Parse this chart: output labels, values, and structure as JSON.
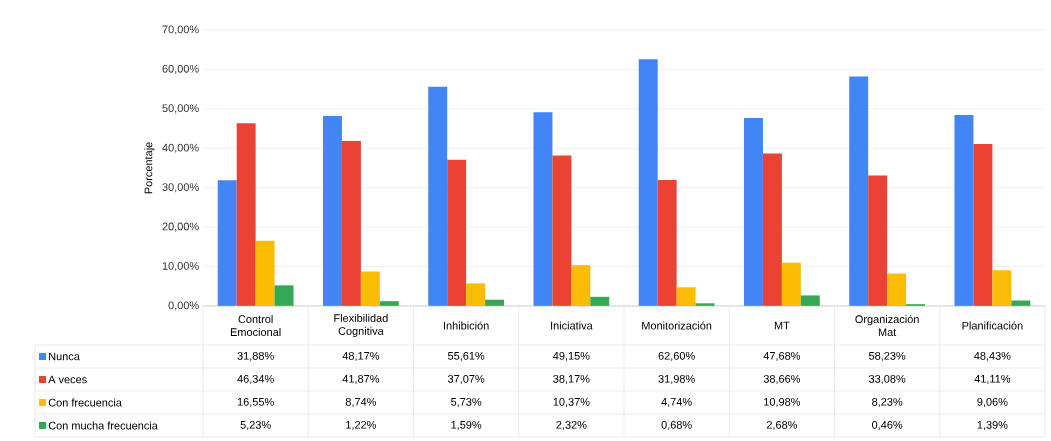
{
  "chart_data": {
    "type": "bar",
    "ylabel": "Porcentaje",
    "categories": [
      "Control Emocional",
      "Flexibilidad Cognitiva",
      "Inhibición",
      "Iniciativa",
      "Monitorización",
      "MT",
      "Organización Mat",
      "Planificación"
    ],
    "series": [
      {
        "name": "Nunca",
        "color": "#4285f4",
        "values": [
          31.88,
          48.17,
          55.61,
          49.15,
          62.6,
          47.68,
          58.23,
          48.43
        ],
        "value_labels": [
          "31,88%",
          "48,17%",
          "55,61%",
          "49,15%",
          "62,60%",
          "47,68%",
          "58,23%",
          "48,43%"
        ]
      },
      {
        "name": "A veces",
        "color": "#ea4335",
        "values": [
          46.34,
          41.87,
          37.07,
          38.17,
          31.98,
          38.66,
          33.08,
          41.11
        ],
        "value_labels": [
          "46,34%",
          "41,87%",
          "37,07%",
          "38,17%",
          "31,98%",
          "38,66%",
          "33,08%",
          "41,11%"
        ]
      },
      {
        "name": "Con frecuencia",
        "color": "#fbbc04",
        "values": [
          16.55,
          8.74,
          5.73,
          10.37,
          4.74,
          10.98,
          8.23,
          9.06
        ],
        "value_labels": [
          "16,55%",
          "8,74%",
          "5,73%",
          "10,37%",
          "4,74%",
          "10,98%",
          "8,23%",
          "9,06%"
        ]
      },
      {
        "name": "Con mucha frecuencia",
        "color": "#34a853",
        "values": [
          5.23,
          1.22,
          1.59,
          2.32,
          0.68,
          2.68,
          0.46,
          1.39
        ],
        "value_labels": [
          "5,23%",
          "1,22%",
          "1,59%",
          "2,32%",
          "0,68%",
          "2,68%",
          "0,46%",
          "1,39%"
        ]
      }
    ],
    "ylim": [
      0,
      70
    ],
    "yticks": [
      {
        "value": 0,
        "label": "0,00%"
      },
      {
        "value": 10,
        "label": "10,00%"
      },
      {
        "value": 20,
        "label": "20,00%"
      },
      {
        "value": 30,
        "label": "30,00%"
      },
      {
        "value": 40,
        "label": "40,00%"
      },
      {
        "value": 50,
        "label": "50,00%"
      },
      {
        "value": 60,
        "label": "60,00%"
      },
      {
        "value": 70,
        "label": "70,00%"
      }
    ],
    "grid": "y",
    "legend": "bottom"
  }
}
